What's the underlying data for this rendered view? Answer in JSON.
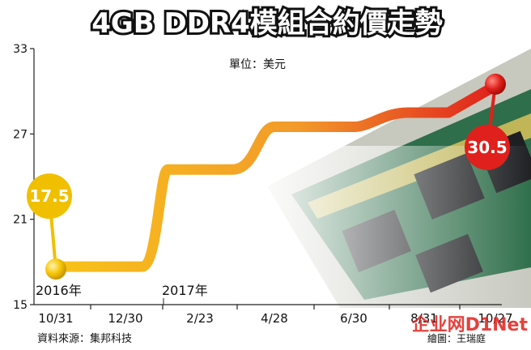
{
  "chart_data": {
    "type": "line",
    "title": "4GB DDR4模組合約價走勢",
    "unit_label": "單位：美元",
    "x": [
      "10/31",
      "12/30",
      "2/23",
      "4/28",
      "6/30",
      "8/31",
      "10/27"
    ],
    "year_labels": [
      {
        "text": "2016年",
        "at": "10/31"
      },
      {
        "text": "2017年",
        "at": "2/23"
      }
    ],
    "values": [
      17.5,
      17.5,
      24.5,
      27.5,
      27.5,
      28.5,
      30.5
    ],
    "y_ticks": [
      "15",
      "21",
      "27",
      "33"
    ],
    "ylim": [
      15,
      33
    ],
    "grid": false,
    "callouts": [
      {
        "text": "17.5",
        "at": "10/31",
        "value": 17.5,
        "color": "#f0c000"
      },
      {
        "text": "30.5",
        "at": "10/27",
        "value": 30.5,
        "color": "#e0201c"
      }
    ],
    "line_colors": [
      "#f6b417",
      "#e0201c"
    ]
  },
  "source": "資料來源：集邦科技",
  "credit": "繪圖：王瑞庭",
  "watermark": "企业网D1Net"
}
